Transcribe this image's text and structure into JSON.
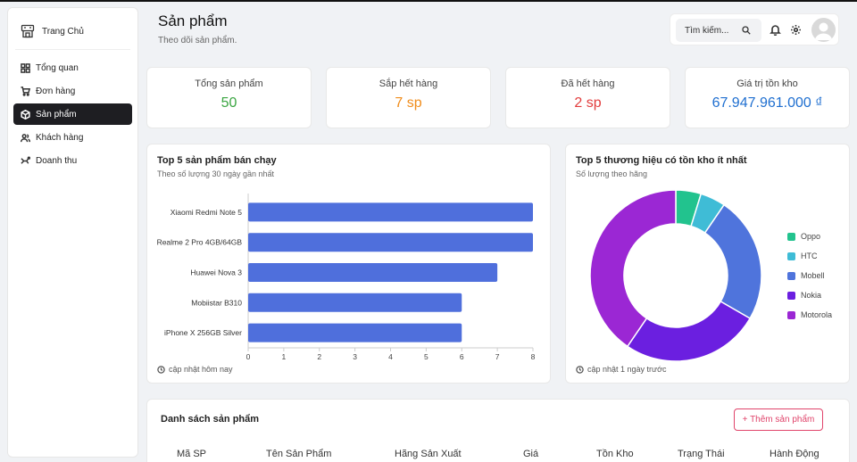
{
  "brand": {
    "name": "Trang Chủ",
    "logo_icon": "store-logo-icon"
  },
  "sidebar": {
    "items": [
      {
        "label": "Tổng quan",
        "icon": "dashboard-icon",
        "active": false
      },
      {
        "label": "Đơn hàng",
        "icon": "cart-icon",
        "active": false
      },
      {
        "label": "Sản phẩm",
        "icon": "box-icon",
        "active": true
      },
      {
        "label": "Khách hàng",
        "icon": "users-icon",
        "active": false
      },
      {
        "label": "Doanh thu",
        "icon": "revenue-icon",
        "active": false
      }
    ]
  },
  "header": {
    "title": "Sản phẩm",
    "subtitle": "Theo dõi sản phẩm.",
    "search_placeholder": "Tìm kiếm..."
  },
  "stats": [
    {
      "label": "Tổng sản phẩm",
      "value": "50",
      "color": "#3aa541"
    },
    {
      "label": "Sắp hết hàng",
      "value": "7 sp",
      "color": "#f08c1a"
    },
    {
      "label": "Đã hết hàng",
      "value": "2 sp",
      "color": "#e23d3d"
    },
    {
      "label": "Giá trị tồn kho",
      "value": "67.947.961.000 ₫",
      "color": "#1f6fd0"
    }
  ],
  "bar_card": {
    "title": "Top 5 sản phẩm bán chạy",
    "subtitle": "Theo số lượng 30 ngày gần nhất",
    "footer": "cập nhật hôm nay"
  },
  "donut_card": {
    "title": "Top 5 thương hiệu có tồn kho ít nhất",
    "subtitle": "Số lượng theo hãng",
    "footer": "cập nhật 1 ngày trước"
  },
  "table": {
    "title": "Danh sách sản phẩm",
    "add_label": "+ Thêm sản phẩm",
    "headers": [
      "Mã SP",
      "Tên Sản Phẩm",
      "Hãng Sản Xuất",
      "Giá",
      "Tồn Kho",
      "Trạng Thái",
      "Hành Động"
    ]
  },
  "chart_data": [
    {
      "type": "bar",
      "orientation": "horizontal",
      "categories": [
        "Xiaomi Redmi Note 5",
        "Realme 2 Pro 4GB/64GB",
        "Huawei Nova 3",
        "Mobiistar B310",
        "iPhone X 256GB Silver"
      ],
      "values": [
        8,
        8,
        7,
        6,
        6
      ],
      "xlim": [
        0,
        8
      ],
      "xticks": [
        0,
        1,
        2,
        3,
        4,
        5,
        6,
        7,
        8
      ],
      "color": "#4f6fdc",
      "grid": false
    },
    {
      "type": "pie",
      "donut": true,
      "labels": [
        "Oppo",
        "HTC",
        "Mobell",
        "Nokia",
        "Motorola"
      ],
      "values": [
        2,
        2,
        10,
        11,
        17
      ],
      "colors": [
        "#22c38e",
        "#3fbcd6",
        "#4f74dc",
        "#6b1fe0",
        "#9b27d4"
      ],
      "legend": "right"
    }
  ]
}
